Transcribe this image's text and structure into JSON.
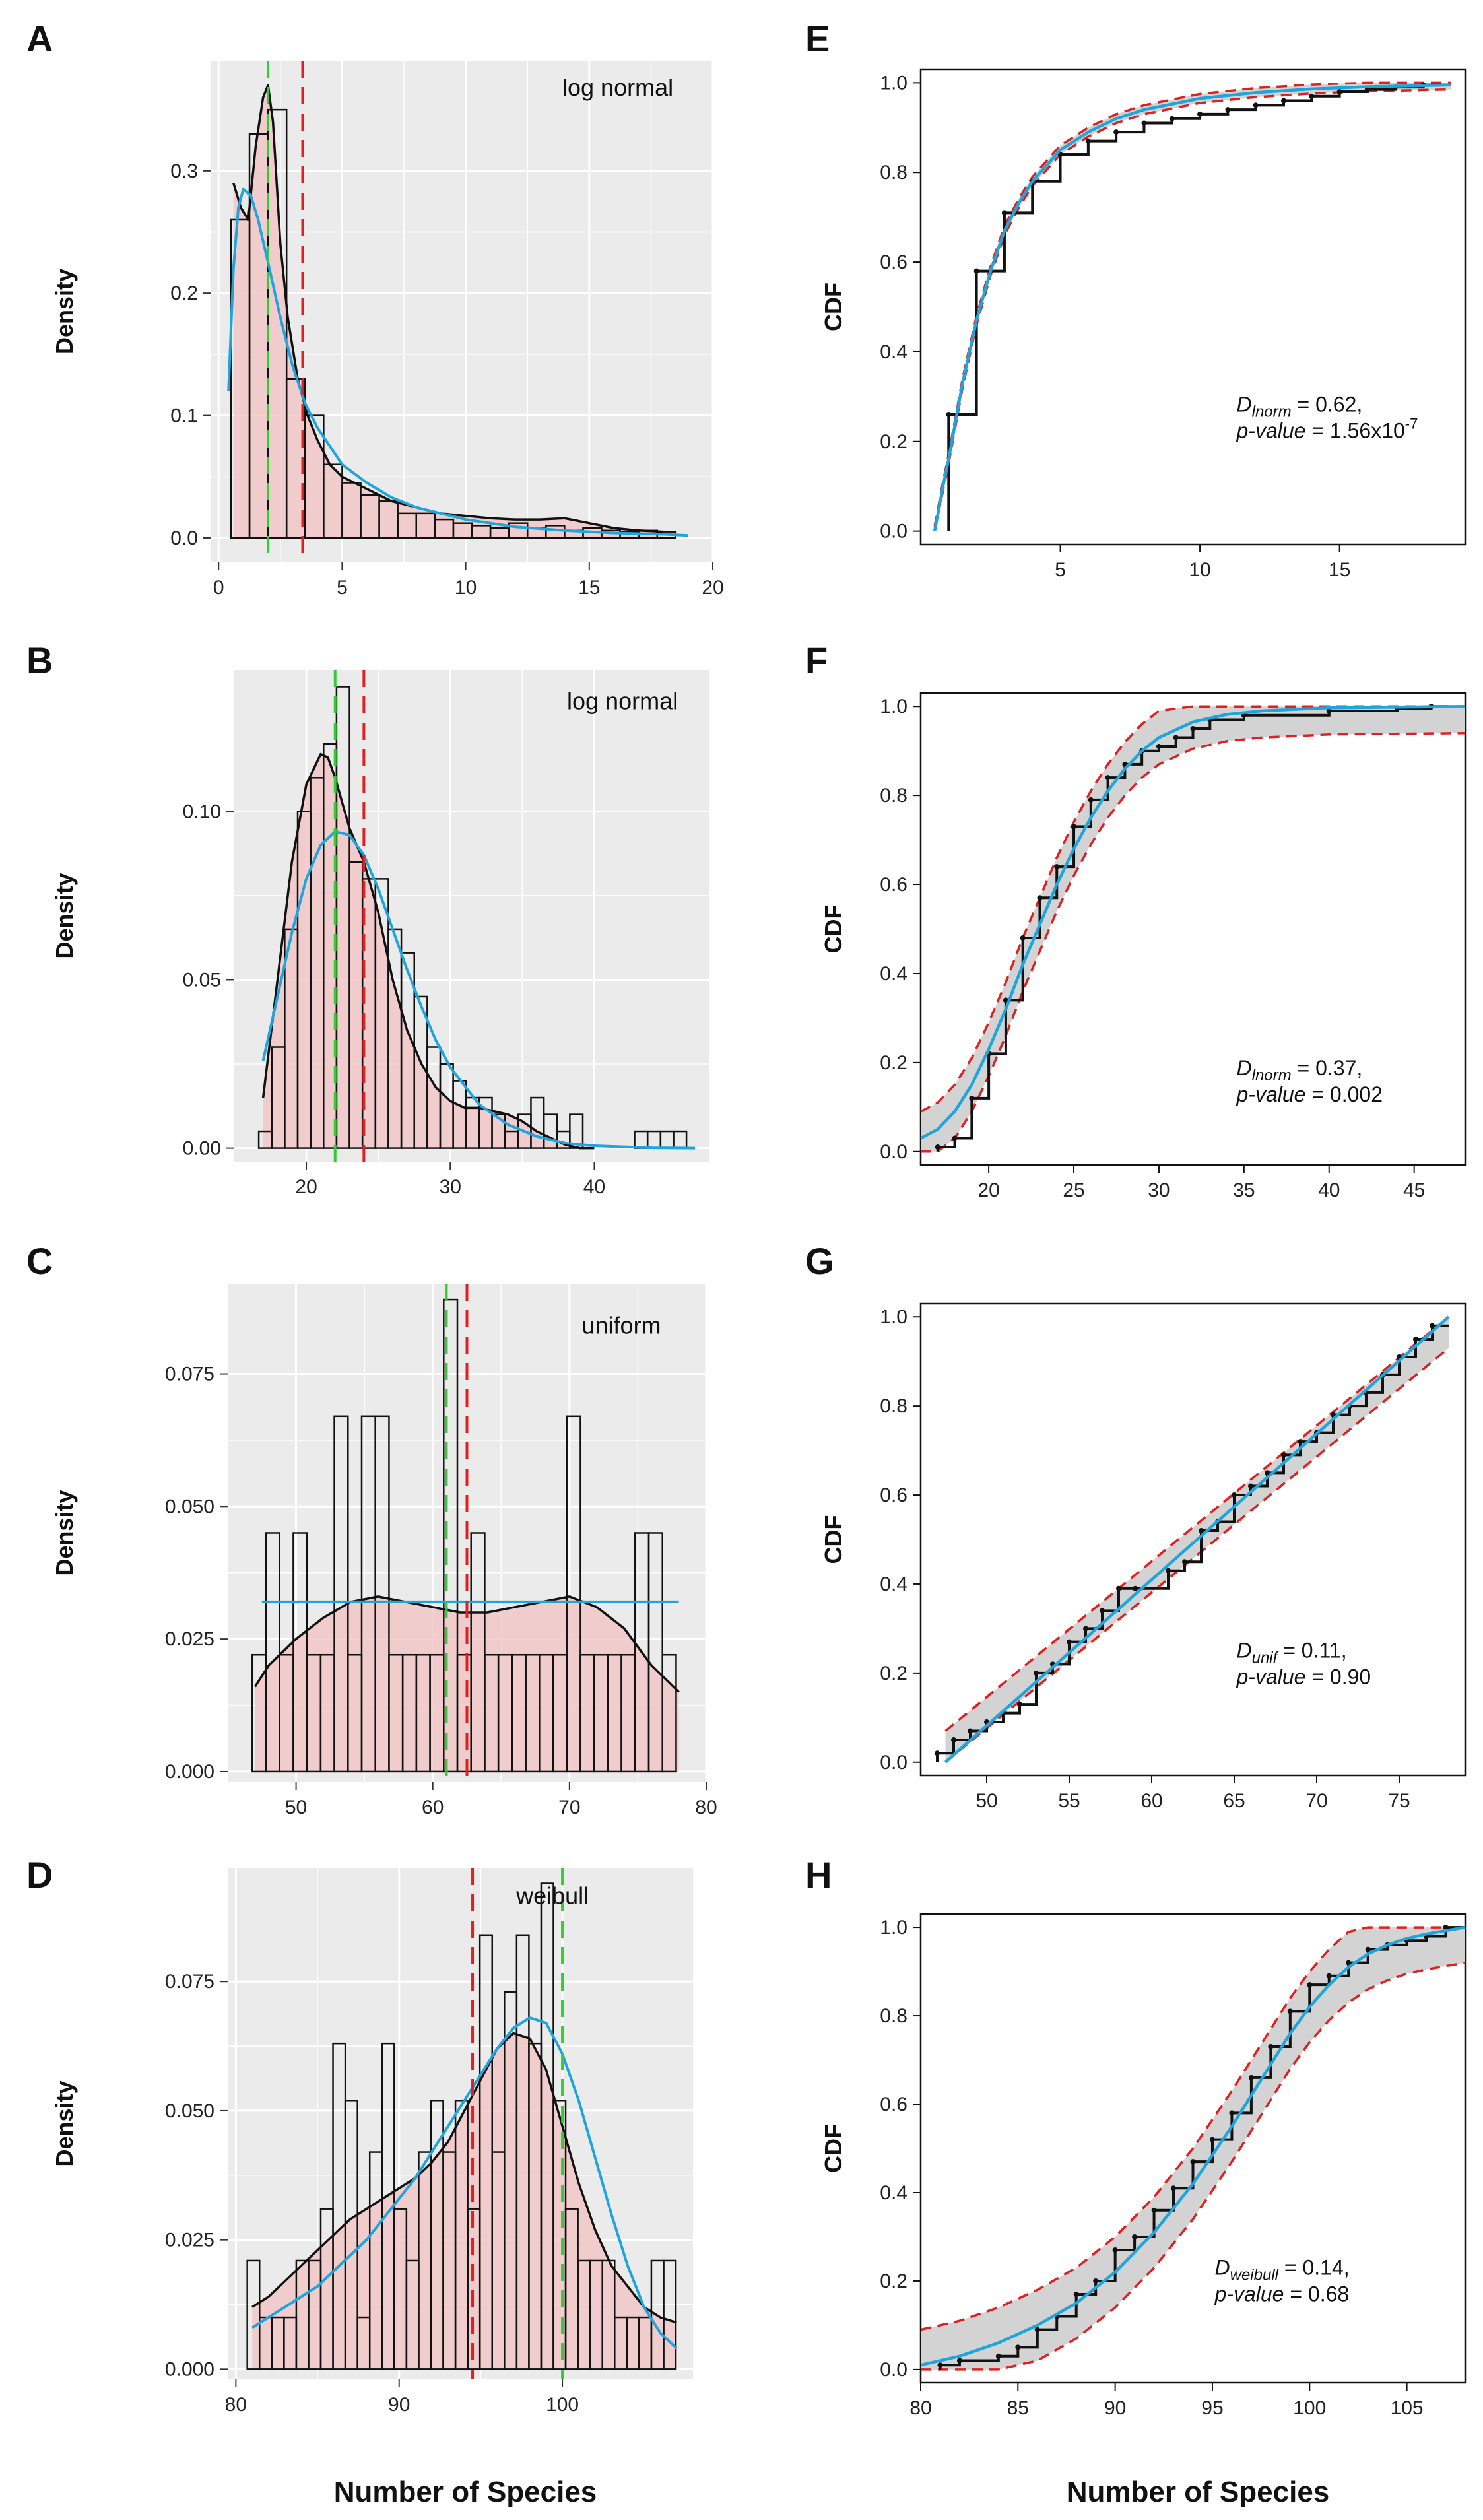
{
  "x_axis_label": "Number of Species",
  "chart_data": [
    {
      "panel": "A",
      "type": "histogram-density",
      "dist_name": "log normal",
      "xlim": [
        -0.3,
        20
      ],
      "ylim": [
        -0.02,
        0.39
      ],
      "xticks": [
        0,
        5,
        10,
        15,
        20
      ],
      "yticks": [
        0.0,
        0.1,
        0.2,
        0.3
      ],
      "ytick_labels": [
        "0.0",
        "0.1",
        "0.2",
        "0.3"
      ],
      "ylabel": "Density",
      "bins": {
        "start": 0.5,
        "width": 0.75,
        "heights": [
          0.26,
          0.33,
          0.35,
          0.13,
          0.1,
          0.06,
          0.045,
          0.035,
          0.03,
          0.02,
          0.02,
          0.015,
          0.012,
          0.01,
          0.008,
          0.012,
          0.008,
          0.01,
          0.006,
          0.008,
          0.006,
          0.005,
          0.006,
          0.005
        ]
      },
      "kde": {
        "x": [
          0.6,
          0.9,
          1.2,
          1.5,
          1.8,
          2.0,
          2.2,
          2.5,
          2.8,
          3.2,
          3.6,
          4.0,
          4.5,
          5.0,
          5.5,
          6,
          7,
          8,
          9,
          10,
          11,
          12,
          13,
          14,
          15,
          16,
          17,
          18
        ],
        "y": [
          0.29,
          0.27,
          0.26,
          0.32,
          0.36,
          0.37,
          0.34,
          0.24,
          0.18,
          0.13,
          0.1,
          0.08,
          0.06,
          0.05,
          0.045,
          0.04,
          0.03,
          0.025,
          0.02,
          0.018,
          0.016,
          0.015,
          0.015,
          0.016,
          0.012,
          0.008,
          0.006,
          0.005
        ]
      },
      "fit": {
        "x": [
          0.4,
          0.6,
          0.8,
          1.0,
          1.3,
          1.6,
          2.0,
          2.5,
          3.0,
          3.5,
          4,
          5,
          6,
          7,
          8,
          10,
          12,
          14,
          16,
          18,
          19
        ],
        "y": [
          0.12,
          0.22,
          0.27,
          0.285,
          0.28,
          0.26,
          0.225,
          0.18,
          0.14,
          0.11,
          0.09,
          0.06,
          0.045,
          0.033,
          0.025,
          0.015,
          0.009,
          0.006,
          0.004,
          0.003,
          0.002
        ]
      },
      "median_green": 2.0,
      "mean_red": 3.4
    },
    {
      "panel": "B",
      "type": "histogram-density",
      "dist_name": "log normal",
      "xlim": [
        15,
        48
      ],
      "ylim": [
        -0.004,
        0.142
      ],
      "xticks": [
        20,
        30,
        40
      ],
      "yticks": [
        0.0,
        0.05,
        0.1
      ],
      "ytick_labels": [
        "0.00",
        "0.05",
        "0.10"
      ],
      "ylabel": "Density",
      "bins": {
        "start": 16.7,
        "width": 0.9,
        "heights": [
          0.005,
          0.03,
          0.065,
          0.1,
          0.11,
          0.12,
          0.137,
          0.085,
          0.08,
          0.08,
          0.065,
          0.058,
          0.045,
          0.03,
          0.025,
          0.02,
          0.015,
          0.015,
          0.01,
          0.005,
          0.01,
          0.015,
          0.01,
          0.005,
          0.01,
          0.0,
          0.0,
          0.0,
          0.0,
          0.005,
          0.005,
          0.005,
          0.005,
          0.0
        ]
      },
      "kde": {
        "x": [
          17,
          18,
          19,
          20,
          21,
          21.5,
          22,
          23,
          24,
          25,
          26,
          27,
          28,
          29,
          30,
          31,
          32,
          33,
          34,
          35,
          36,
          37,
          38,
          39,
          40
        ],
        "y": [
          0.015,
          0.05,
          0.085,
          0.108,
          0.117,
          0.116,
          0.11,
          0.095,
          0.085,
          0.07,
          0.05,
          0.035,
          0.025,
          0.018,
          0.014,
          0.012,
          0.012,
          0.011,
          0.01,
          0.008,
          0.005,
          0.003,
          0.001,
          0.0,
          0.0
        ]
      },
      "fit": {
        "x": [
          17,
          18,
          19,
          20,
          21,
          22,
          23,
          24,
          25,
          26,
          27,
          28,
          29,
          30,
          32,
          34,
          36,
          38,
          40,
          44,
          47
        ],
        "y": [
          0.026,
          0.045,
          0.064,
          0.08,
          0.09,
          0.094,
          0.093,
          0.087,
          0.077,
          0.065,
          0.053,
          0.042,
          0.032,
          0.024,
          0.013,
          0.007,
          0.0035,
          0.0015,
          0.0007,
          0.0001,
          0.0
        ]
      },
      "median_green": 22.0,
      "mean_red": 24.0
    },
    {
      "panel": "C",
      "type": "histogram-density",
      "dist_name": "uniform",
      "xlim": [
        45,
        80
      ],
      "ylim": [
        -0.002,
        0.092
      ],
      "xticks": [
        50,
        60,
        70,
        80
      ],
      "yticks": [
        0.0,
        0.025,
        0.05,
        0.075
      ],
      "ytick_labels": [
        "0.000",
        "0.025",
        "0.050",
        "0.075"
      ],
      "ylabel": "Density",
      "bins": {
        "start": 46.8,
        "width": 1.0,
        "heights": [
          0.022,
          0.045,
          0.022,
          0.045,
          0.022,
          0.022,
          0.067,
          0.022,
          0.067,
          0.067,
          0.022,
          0.022,
          0.022,
          0.022,
          0.089,
          0.022,
          0.045,
          0.022,
          0.022,
          0.022,
          0.022,
          0.022,
          0.022,
          0.067,
          0.022,
          0.022,
          0.022,
          0.022,
          0.045,
          0.045,
          0.022
        ]
      },
      "kde": {
        "x": [
          47,
          48,
          50,
          52,
          54,
          56,
          58,
          60,
          62,
          64,
          66,
          68,
          70,
          72,
          74,
          76,
          78
        ],
        "y": [
          0.016,
          0.02,
          0.025,
          0.029,
          0.032,
          0.033,
          0.032,
          0.031,
          0.03,
          0.03,
          0.031,
          0.032,
          0.033,
          0.031,
          0.027,
          0.02,
          0.015
        ]
      },
      "fit": {
        "x": [
          47.5,
          78.0
        ],
        "y": [
          0.032,
          0.032
        ]
      },
      "median_green": 61.0,
      "mean_red": 62.5
    },
    {
      "panel": "D",
      "type": "histogram-density",
      "dist_name": "weibull",
      "xlim": [
        79.5,
        108
      ],
      "ylim": [
        -0.002,
        0.097
      ],
      "xticks": [
        80,
        90,
        100
      ],
      "yticks": [
        0.0,
        0.025,
        0.05,
        0.075
      ],
      "ytick_labels": [
        "0.000",
        "0.025",
        "0.050",
        "0.075"
      ],
      "ylabel": "Density",
      "bins": {
        "start": 80.7,
        "width": 0.75,
        "heights": [
          0.021,
          0.01,
          0.01,
          0.01,
          0.021,
          0.021,
          0.031,
          0.063,
          0.052,
          0.01,
          0.042,
          0.063,
          0.031,
          0.021,
          0.042,
          0.052,
          0.042,
          0.052,
          0.031,
          0.084,
          0.042,
          0.073,
          0.084,
          0.063,
          0.094,
          0.052,
          0.031,
          0.021,
          0.021,
          0.021,
          0.01,
          0.01,
          0.01,
          0.021,
          0.021
        ]
      },
      "kde": {
        "x": [
          81,
          82,
          83,
          84,
          85,
          86,
          87,
          88,
          89,
          90,
          91,
          92,
          93,
          94,
          95,
          96,
          97,
          98,
          99,
          100,
          101,
          102,
          103,
          104,
          105,
          106,
          107
        ],
        "y": [
          0.012,
          0.014,
          0.017,
          0.02,
          0.023,
          0.026,
          0.029,
          0.031,
          0.033,
          0.035,
          0.037,
          0.04,
          0.044,
          0.05,
          0.056,
          0.062,
          0.065,
          0.064,
          0.058,
          0.047,
          0.036,
          0.027,
          0.02,
          0.016,
          0.012,
          0.01,
          0.009
        ]
      },
      "fit": {
        "x": [
          81,
          82,
          83,
          84,
          85,
          86,
          87,
          88,
          89,
          90,
          91,
          92,
          93,
          94,
          95,
          96,
          97,
          98,
          99,
          100,
          101,
          102,
          103,
          104,
          105,
          106,
          107
        ],
        "y": [
          0.008,
          0.01,
          0.012,
          0.014,
          0.016,
          0.019,
          0.022,
          0.025,
          0.029,
          0.033,
          0.037,
          0.042,
          0.047,
          0.052,
          0.057,
          0.062,
          0.066,
          0.068,
          0.067,
          0.061,
          0.052,
          0.041,
          0.03,
          0.02,
          0.012,
          0.007,
          0.004
        ]
      },
      "median_green": 100.0,
      "mean_red": 94.5
    },
    {
      "panel": "E",
      "type": "ecdf",
      "ylabel": "CDF",
      "xlim": [
        0,
        19.5
      ],
      "ylim": [
        -0.03,
        1.03
      ],
      "xticks": [
        5,
        10,
        15
      ],
      "yticks": [
        0.0,
        0.2,
        0.4,
        0.6,
        0.8,
        1.0
      ],
      "ytick_labels": [
        "0.0",
        "0.2",
        "0.4",
        "0.6",
        "0.8",
        "1.0"
      ],
      "ecdf": {
        "x": [
          1,
          2,
          3,
          4,
          5,
          6,
          7,
          8,
          9,
          10,
          11,
          12,
          13,
          14,
          15,
          16,
          17,
          18
        ],
        "y": [
          0.26,
          0.58,
          0.71,
          0.78,
          0.84,
          0.87,
          0.89,
          0.91,
          0.92,
          0.93,
          0.94,
          0.95,
          0.96,
          0.97,
          0.98,
          0.985,
          0.99,
          0.995
        ]
      },
      "ecdf_x_end": 19.0,
      "fit": {
        "x": [
          0.5,
          0.8,
          1.0,
          1.5,
          2.0,
          2.5,
          3.0,
          3.5,
          4,
          5,
          6,
          7,
          8,
          10,
          12,
          14,
          16,
          19
        ],
        "y": [
          0.0,
          0.1,
          0.16,
          0.33,
          0.47,
          0.58,
          0.67,
          0.73,
          0.78,
          0.85,
          0.89,
          0.92,
          0.94,
          0.965,
          0.978,
          0.986,
          0.991,
          0.995
        ]
      },
      "band_half_width": 0.01,
      "stat_label": "D",
      "stat_sub": "lnorm",
      "stat_value": "= 0.62,",
      "pval_label": "p-value",
      "pval_text": "= 1.56x10",
      "pval_exp": "-7"
    },
    {
      "panel": "F",
      "type": "ecdf",
      "ylabel": "CDF",
      "xlim": [
        16,
        48
      ],
      "ylim": [
        -0.03,
        1.03
      ],
      "xticks": [
        20,
        25,
        30,
        35,
        40,
        45
      ],
      "yticks": [
        0.0,
        0.2,
        0.4,
        0.6,
        0.8,
        1.0
      ],
      "ytick_labels": [
        "0.0",
        "0.2",
        "0.4",
        "0.6",
        "0.8",
        "1.0"
      ],
      "ecdf": {
        "x": [
          17,
          18,
          19,
          20,
          21,
          22,
          23,
          24,
          25,
          26,
          27,
          28,
          29,
          30,
          31,
          32,
          33,
          35,
          40,
          44,
          46
        ],
        "y": [
          0.01,
          0.03,
          0.12,
          0.22,
          0.34,
          0.48,
          0.57,
          0.64,
          0.73,
          0.79,
          0.84,
          0.87,
          0.9,
          0.91,
          0.93,
          0.95,
          0.97,
          0.98,
          0.99,
          0.995,
          1.0
        ]
      },
      "ecdf_x_end": 47.0,
      "fit": {
        "x": [
          16,
          17,
          18,
          19,
          20,
          21,
          22,
          23,
          24,
          25,
          26,
          27,
          28,
          29,
          30,
          32,
          34,
          36,
          40,
          48
        ],
        "y": [
          0.03,
          0.05,
          0.09,
          0.15,
          0.23,
          0.32,
          0.42,
          0.51,
          0.6,
          0.68,
          0.75,
          0.81,
          0.86,
          0.9,
          0.93,
          0.965,
          0.982,
          0.99,
          0.997,
          1.0
        ]
      },
      "band_half_width": 0.06,
      "stat_label": "D",
      "stat_sub": "lnorm",
      "stat_value": "= 0.37,",
      "pval_label": "p-value",
      "pval_text": "= 0.002",
      "pval_exp": ""
    },
    {
      "panel": "G",
      "type": "ecdf",
      "ylabel": "CDF",
      "xlim": [
        46,
        79
      ],
      "ylim": [
        -0.03,
        1.03
      ],
      "xticks": [
        50,
        55,
        60,
        65,
        70,
        75
      ],
      "yticks": [
        0.0,
        0.2,
        0.4,
        0.6,
        0.8,
        1.0
      ],
      "ytick_labels": [
        "0.0",
        "0.2",
        "0.4",
        "0.6",
        "0.8",
        "1.0"
      ],
      "ecdf": {
        "x": [
          47,
          48,
          49,
          50,
          51,
          52,
          53,
          54,
          55,
          56,
          57,
          58,
          59,
          61,
          62,
          63,
          64,
          65,
          66,
          67,
          68,
          69,
          70,
          71,
          72,
          73,
          74,
          75,
          76,
          77
        ],
        "y": [
          0.02,
          0.05,
          0.07,
          0.09,
          0.11,
          0.13,
          0.2,
          0.22,
          0.27,
          0.3,
          0.34,
          0.39,
          0.39,
          0.43,
          0.45,
          0.52,
          0.54,
          0.6,
          0.62,
          0.65,
          0.69,
          0.72,
          0.74,
          0.78,
          0.8,
          0.83,
          0.87,
          0.91,
          0.95,
          0.98
        ]
      },
      "ecdf_x_end": 78.0,
      "fit": {
        "x": [
          47.5,
          78
        ],
        "y": [
          0.0,
          1.0
        ]
      },
      "band_half_width": 0.07,
      "stat_label": "D",
      "stat_sub": "unif",
      "stat_value": "= 0.11,",
      "pval_label": "p-value",
      "pval_text": "= 0.90",
      "pval_exp": ""
    },
    {
      "panel": "H",
      "type": "ecdf",
      "ylabel": "CDF",
      "xlim": [
        80,
        108
      ],
      "ylim": [
        -0.03,
        1.03
      ],
      "xticks": [
        80,
        85,
        90,
        95,
        100,
        105
      ],
      "yticks": [
        0.0,
        0.2,
        0.4,
        0.6,
        0.8,
        1.0
      ],
      "ytick_labels": [
        "0.0",
        "0.2",
        "0.4",
        "0.6",
        "0.8",
        "1.0"
      ],
      "ecdf": {
        "x": [
          81,
          82,
          84,
          85,
          86,
          87,
          88,
          89,
          90,
          91,
          92,
          93,
          94,
          95,
          96,
          97,
          98,
          99,
          100,
          101,
          102,
          103,
          104,
          105,
          106,
          107
        ],
        "y": [
          0.01,
          0.02,
          0.03,
          0.05,
          0.09,
          0.12,
          0.17,
          0.2,
          0.27,
          0.3,
          0.36,
          0.41,
          0.47,
          0.52,
          0.58,
          0.66,
          0.73,
          0.81,
          0.87,
          0.89,
          0.92,
          0.95,
          0.96,
          0.97,
          0.98,
          1.0
        ]
      },
      "ecdf_x_end": 108.0,
      "fit": {
        "x": [
          80,
          82,
          84,
          86,
          88,
          90,
          92,
          94,
          96,
          97,
          98,
          99,
          100,
          101,
          102,
          103,
          104,
          105,
          106,
          108
        ],
        "y": [
          0.01,
          0.03,
          0.06,
          0.1,
          0.15,
          0.22,
          0.31,
          0.42,
          0.55,
          0.62,
          0.69,
          0.76,
          0.82,
          0.87,
          0.91,
          0.94,
          0.96,
          0.975,
          0.985,
          1.0
        ]
      },
      "band_half_width": 0.08,
      "stat_label": "D",
      "stat_sub": "weibull",
      "stat_value": "= 0.14,",
      "pval_label": "p-value",
      "pval_text": "= 0.68",
      "pval_exp": ""
    }
  ]
}
